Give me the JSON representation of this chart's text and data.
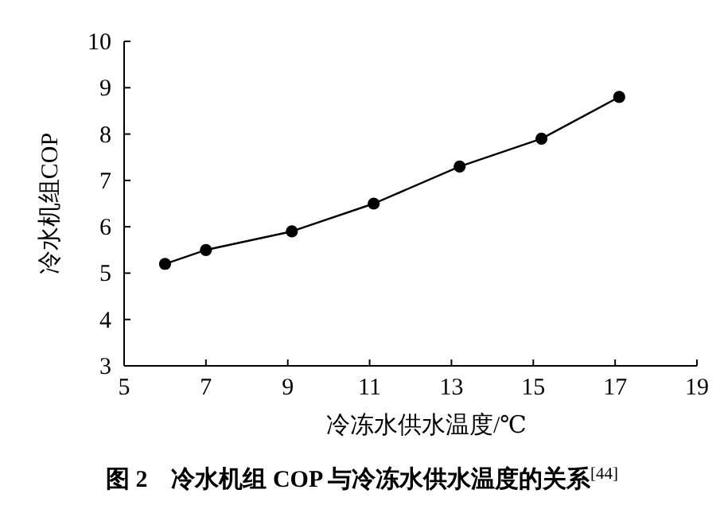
{
  "chart_data": {
    "type": "line",
    "title": "图 2　冷水机组 COP 与冷冻水供水温度的关系$^{[44]}$",
    "xlabel": "冷冻水供水温度/℃",
    "ylabel": "冷水机组COP",
    "series": [
      {
        "color": "#000000",
        "x": [
          6,
          7,
          9.1,
          11.1,
          13.2,
          15.2,
          17.1
        ],
        "values": [
          5.2,
          5.5,
          5.9,
          6.5,
          7.3,
          7.9,
          8.8
        ]
      }
    ],
    "xlim": [
      5,
      19
    ],
    "xticks": [
      5,
      7,
      9,
      11,
      13,
      15,
      17,
      19
    ],
    "ylim": [
      3,
      10
    ],
    "yticks": [
      3,
      4,
      5,
      6,
      7,
      8,
      9,
      10
    ],
    "marker": "circle",
    "line_style": "solid",
    "grid": false
  }
}
